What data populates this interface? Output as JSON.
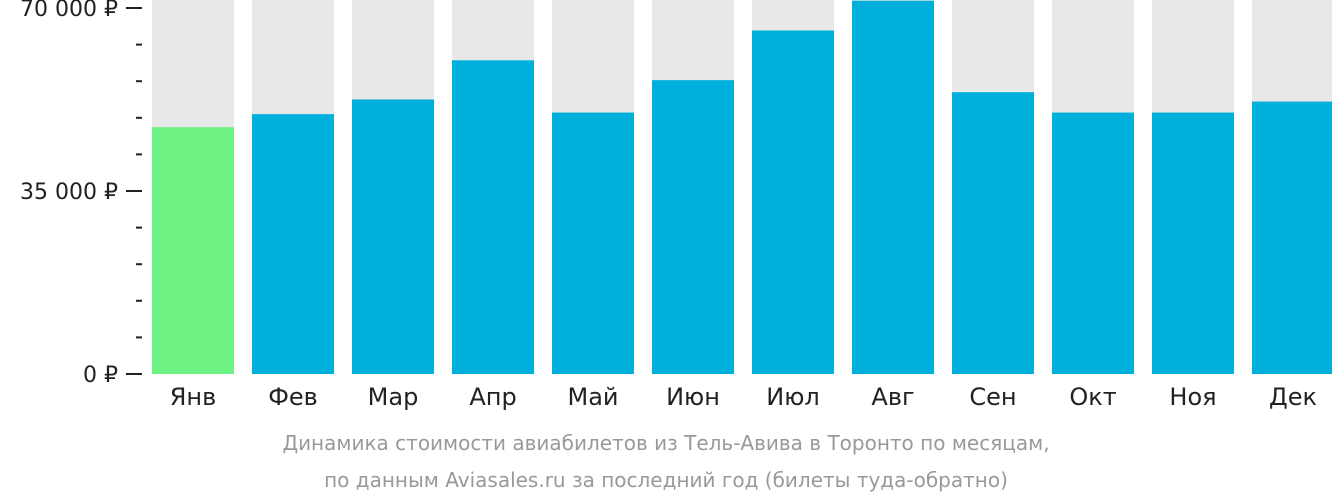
{
  "chart_data": {
    "type": "bar",
    "currency_symbol": "₽",
    "y_tick_labels": [
      "70 000 ₽",
      "35 000 ₽",
      "0 ₽"
    ],
    "y_tick_values": [
      70000,
      35000,
      0
    ],
    "minor_ticks_per_interval": 4,
    "ylim": [
      0,
      70000
    ],
    "categories": [
      "Янв",
      "Фев",
      "Мар",
      "Апр",
      "Май",
      "Июн",
      "Июл",
      "Авг",
      "Сен",
      "Окт",
      "Ноя",
      "Дек"
    ],
    "values": [
      47200,
      49700,
      52500,
      60000,
      50000,
      56200,
      65700,
      71400,
      53900,
      50000,
      50000,
      52100
    ],
    "highlight_index": 0,
    "colors": {
      "bar": "#00b0dc",
      "highlight": "#6ef284",
      "background_bar": "#e8e8e8",
      "axis": "#222222"
    }
  },
  "caption": {
    "line1": "Динамика стоимости авиабилетов из Тель-Авива в Торонто по месяцам,",
    "line2": "по данным Aviasales.ru за последний год (билеты туда-обратно)"
  }
}
